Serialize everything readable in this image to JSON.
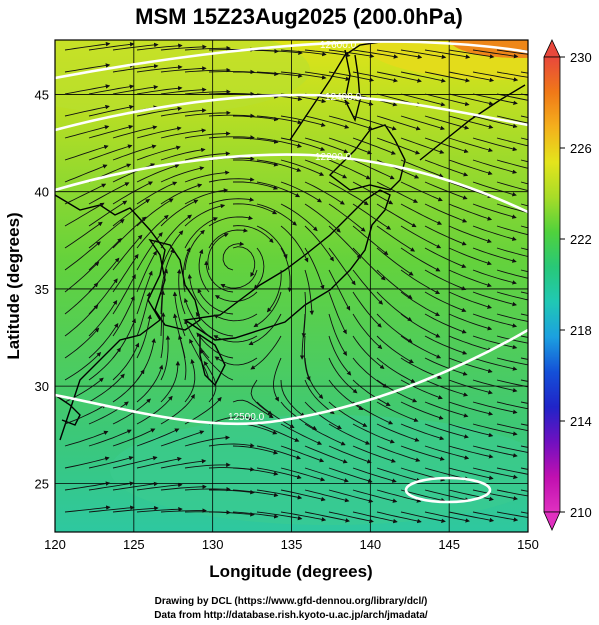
{
  "title": "MSM 15Z23Aug2025 (200.0hPa)",
  "map": {
    "xlabel": "Longitude (degrees)",
    "ylabel": "Latitude  (degrees)",
    "x_ticks": [
      "120",
      "125",
      "130",
      "135",
      "140",
      "145",
      "150"
    ],
    "y_ticks": [
      "25",
      "30",
      "35",
      "40",
      "45"
    ],
    "xlim": [
      120,
      150
    ],
    "ylim": [
      22.5,
      47.8
    ],
    "field_colors": {
      "north_east_warm": "#f07818",
      "north_band": "#e0e418",
      "center": "#64d23c",
      "south": "#3cc878",
      "south_cyan": "#2ec8a0"
    },
    "contours": [
      {
        "label": "12600.0",
        "line_color": "#ffffff"
      },
      {
        "label": "12400.0",
        "line_color": "#ffffff"
      },
      {
        "label": "12200.0",
        "line_color": "#ffffff"
      },
      {
        "label": "12500.0",
        "line_color": "#ffffff"
      },
      {
        "label": "",
        "line_color": "#ffffff"
      }
    ],
    "anticyclone_center_lonlat": [
      131.5,
      36.5
    ]
  },
  "colorbar": {
    "ticks": [
      "230",
      "226",
      "222",
      "218",
      "214",
      "210"
    ],
    "colors": [
      "#e8483c",
      "#f07818",
      "#f4b01c",
      "#e4e41c",
      "#a8dc28",
      "#50d23c",
      "#28c878",
      "#20c8b4",
      "#1ca0e0",
      "#1450d8",
      "#2024c8",
      "#7010c0",
      "#c010b0",
      "#e030c0"
    ]
  },
  "credits": {
    "line1": "Drawing by DCL (https://www.gfd-dennou.org/library/dcl/)",
    "line2": "Data from http://database.rish.kyoto-u.ac.jp/arch/jmadata/"
  }
}
